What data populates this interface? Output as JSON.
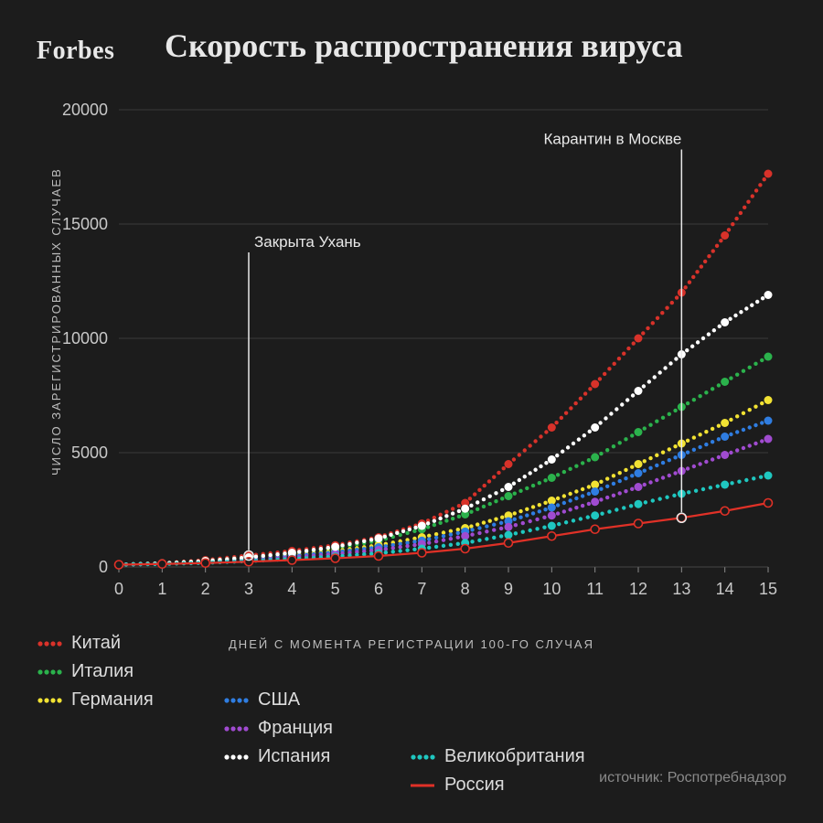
{
  "brand": "Forbes",
  "title": "Скорость распространения вируса",
  "chart": {
    "type": "line-dotted",
    "background": "#1c1c1c",
    "grid_color": "#4e4e4e",
    "axis_color": "#8a8a8a",
    "tick_font_size": 18,
    "label_font_size": 13,
    "annotation_font_size": 17,
    "xlabel": "ДНЕЙ С МОМЕНТА РЕГИСТРАЦИИ 100-ГО СЛУЧАЯ",
    "ylabel": "ЧИСЛО ЗАРЕГИСТРИРОВАННЫХ СЛУЧАЕВ",
    "xlim": [
      0,
      15
    ],
    "ylim": [
      0,
      20000
    ],
    "xtick_step": 1,
    "ytick_step": 5000,
    "dot_radius_small": 2.2,
    "dot_radius_marker": 4.5,
    "russia_line_width": 2.2,
    "x": [
      0,
      1,
      2,
      3,
      4,
      5,
      6,
      7,
      8,
      9,
      10,
      11,
      12,
      13,
      14,
      15
    ],
    "series": [
      {
        "id": "china",
        "label": "Китай",
        "color": "#d8322a",
        "style": "dotted",
        "values": [
          100,
          170,
          300,
          500,
          700,
          950,
          1300,
          1900,
          2800,
          4500,
          6100,
          8000,
          10000,
          12000,
          14500,
          17200
        ]
      },
      {
        "id": "italy",
        "label": "Италия",
        "color": "#2bb24c",
        "style": "dotted",
        "values": [
          100,
          160,
          260,
          420,
          600,
          820,
          1150,
          1650,
          2300,
          3100,
          3900,
          4800,
          5900,
          7000,
          8100,
          9200
        ]
      },
      {
        "id": "germany",
        "label": "Германия",
        "color": "#f2e233",
        "style": "dotted",
        "values": [
          100,
          150,
          230,
          360,
          520,
          700,
          950,
          1300,
          1700,
          2250,
          2900,
          3600,
          4500,
          5400,
          6300,
          7300
        ]
      },
      {
        "id": "usa",
        "label": "США",
        "color": "#2f7de1",
        "style": "dotted",
        "values": [
          100,
          150,
          220,
          340,
          480,
          640,
          860,
          1150,
          1550,
          2000,
          2600,
          3300,
          4100,
          4900,
          5700,
          6400
        ]
      },
      {
        "id": "france",
        "label": "Франция",
        "color": "#a04bd0",
        "style": "dotted",
        "values": [
          100,
          140,
          200,
          300,
          420,
          560,
          740,
          1000,
          1350,
          1750,
          2250,
          2850,
          3500,
          4200,
          4900,
          5600
        ]
      },
      {
        "id": "spain",
        "label": "Испания",
        "color": "#ffffff",
        "style": "dotted",
        "values": [
          100,
          160,
          260,
          420,
          620,
          880,
          1250,
          1800,
          2550,
          3500,
          4700,
          6100,
          7700,
          9300,
          10700,
          11900
        ]
      },
      {
        "id": "uk",
        "label": "Великобритания",
        "color": "#1fc7c0",
        "style": "dotted",
        "values": [
          100,
          130,
          180,
          260,
          350,
          460,
          600,
          800,
          1050,
          1400,
          1800,
          2250,
          2750,
          3200,
          3600,
          4000
        ]
      },
      {
        "id": "russia",
        "label": "Россия",
        "color": "#e03127",
        "style": "solid",
        "values": [
          100,
          130,
          170,
          230,
          300,
          380,
          480,
          620,
          800,
          1050,
          1350,
          1650,
          1900,
          2150,
          2450,
          2800
        ]
      }
    ],
    "annotations": [
      {
        "id": "wuhan",
        "label": "Закрыта Ухань",
        "x": 3,
        "series": "china",
        "y_top": 14000,
        "align": "left"
      },
      {
        "id": "moscow",
        "label": "Карантин в Москве",
        "x": 13,
        "series": "russia",
        "y_top": 18500,
        "align": "right"
      }
    ]
  },
  "legend": {
    "cols": 3,
    "items": [
      {
        "ref": "china",
        "col": 0
      },
      {
        "ref": "italy",
        "col": 0
      },
      {
        "ref": "germany",
        "col": 0
      },
      {
        "ref": "usa",
        "col": 1
      },
      {
        "ref": "france",
        "col": 1
      },
      {
        "ref": "spain",
        "col": 1
      },
      {
        "ref": "uk",
        "col": 2
      },
      {
        "ref": "russia",
        "col": 2
      }
    ]
  },
  "source_prefix": "источник: ",
  "source": "Роспотребнадзор"
}
